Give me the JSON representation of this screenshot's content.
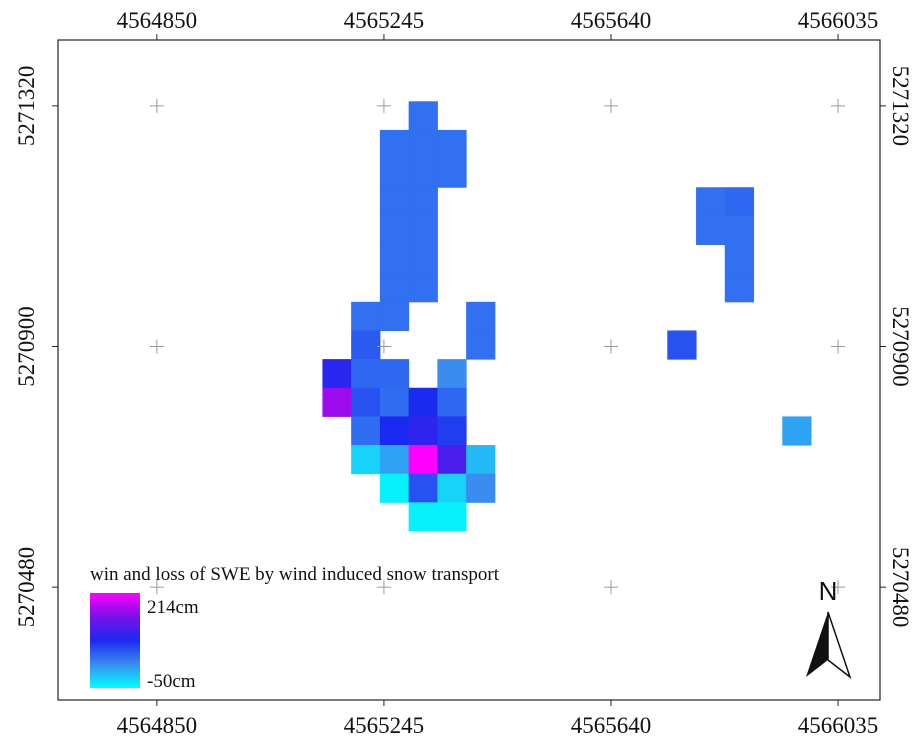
{
  "map": {
    "xlim": [
      4564678,
      4566108
    ],
    "ylim": [
      5270283,
      5271435
    ],
    "xticks": [
      4564850,
      4565245,
      4565640,
      4566035
    ],
    "yticks": [
      5271320,
      5270900,
      5270480
    ],
    "cells": [
      {
        "x": 4565313,
        "y": 5271303,
        "value": 35
      },
      {
        "x": 4565263,
        "y": 5271253,
        "value": 35
      },
      {
        "x": 4565313,
        "y": 5271253,
        "value": 35
      },
      {
        "x": 4565363,
        "y": 5271253,
        "value": 35
      },
      {
        "x": 4565263,
        "y": 5271203,
        "value": 35
      },
      {
        "x": 4565313,
        "y": 5271203,
        "value": 35
      },
      {
        "x": 4565363,
        "y": 5271203,
        "value": 35
      },
      {
        "x": 4565263,
        "y": 5271153,
        "value": 35
      },
      {
        "x": 4565313,
        "y": 5271153,
        "value": 35
      },
      {
        "x": 4565263,
        "y": 5271103,
        "value": 35
      },
      {
        "x": 4565313,
        "y": 5271103,
        "value": 35
      },
      {
        "x": 4565263,
        "y": 5271053,
        "value": 35
      },
      {
        "x": 4565313,
        "y": 5271053,
        "value": 35
      },
      {
        "x": 4565263,
        "y": 5271003,
        "value": 35
      },
      {
        "x": 4565313,
        "y": 5271003,
        "value": 35
      },
      {
        "x": 4565213,
        "y": 5270953,
        "value": 35
      },
      {
        "x": 4565263,
        "y": 5270953,
        "value": 35
      },
      {
        "x": 4565413,
        "y": 5270953,
        "value": 35
      },
      {
        "x": 4565213,
        "y": 5270903,
        "value": 50
      },
      {
        "x": 4565413,
        "y": 5270903,
        "value": 35
      },
      {
        "x": 4565163,
        "y": 5270853,
        "value": 92
      },
      {
        "x": 4565213,
        "y": 5270853,
        "value": 40
      },
      {
        "x": 4565263,
        "y": 5270853,
        "value": 40
      },
      {
        "x": 4565363,
        "y": 5270853,
        "value": 16
      },
      {
        "x": 4565163,
        "y": 5270803,
        "value": 166
      },
      {
        "x": 4565213,
        "y": 5270803,
        "value": 56
      },
      {
        "x": 4565263,
        "y": 5270803,
        "value": 37
      },
      {
        "x": 4565313,
        "y": 5270803,
        "value": 82
      },
      {
        "x": 4565363,
        "y": 5270803,
        "value": 40
      },
      {
        "x": 4565213,
        "y": 5270753,
        "value": 37
      },
      {
        "x": 4565263,
        "y": 5270753,
        "value": 82
      },
      {
        "x": 4565313,
        "y": 5270753,
        "value": 95
      },
      {
        "x": 4565363,
        "y": 5270753,
        "value": 69
      },
      {
        "x": 4565213,
        "y": 5270703,
        "value": -24
      },
      {
        "x": 4565263,
        "y": 5270703,
        "value": 3
      },
      {
        "x": 4565313,
        "y": 5270703,
        "value": 214
      },
      {
        "x": 4565363,
        "y": 5270703,
        "value": 114
      },
      {
        "x": 4565413,
        "y": 5270703,
        "value": -10
      },
      {
        "x": 4565263,
        "y": 5270653,
        "value": -42
      },
      {
        "x": 4565313,
        "y": 5270653,
        "value": 56
      },
      {
        "x": 4565363,
        "y": 5270653,
        "value": -24
      },
      {
        "x": 4565413,
        "y": 5270653,
        "value": 16
      },
      {
        "x": 4565313,
        "y": 5270603,
        "value": -42
      },
      {
        "x": 4565363,
        "y": 5270603,
        "value": -42
      },
      {
        "x": 4565813,
        "y": 5271153,
        "value": 35
      },
      {
        "x": 4565863,
        "y": 5271153,
        "value": 40
      },
      {
        "x": 4565813,
        "y": 5271103,
        "value": 35
      },
      {
        "x": 4565863,
        "y": 5271103,
        "value": 35
      },
      {
        "x": 4565863,
        "y": 5271053,
        "value": 35
      },
      {
        "x": 4565863,
        "y": 5271003,
        "value": 35
      },
      {
        "x": 4565763,
        "y": 5270903,
        "value": 56
      },
      {
        "x": 4565963,
        "y": 5270753,
        "value": 3
      }
    ],
    "legend": {
      "title": "win and loss of SWE by wind induced snow transport",
      "min": -50,
      "max": 214,
      "min_label": "-50cm",
      "max_label": "214cm",
      "colors": [
        "#00ffff",
        "#3a8cf0",
        "#1a2af0",
        "#7a10e8",
        "#ff00ff"
      ]
    },
    "north": "N"
  }
}
